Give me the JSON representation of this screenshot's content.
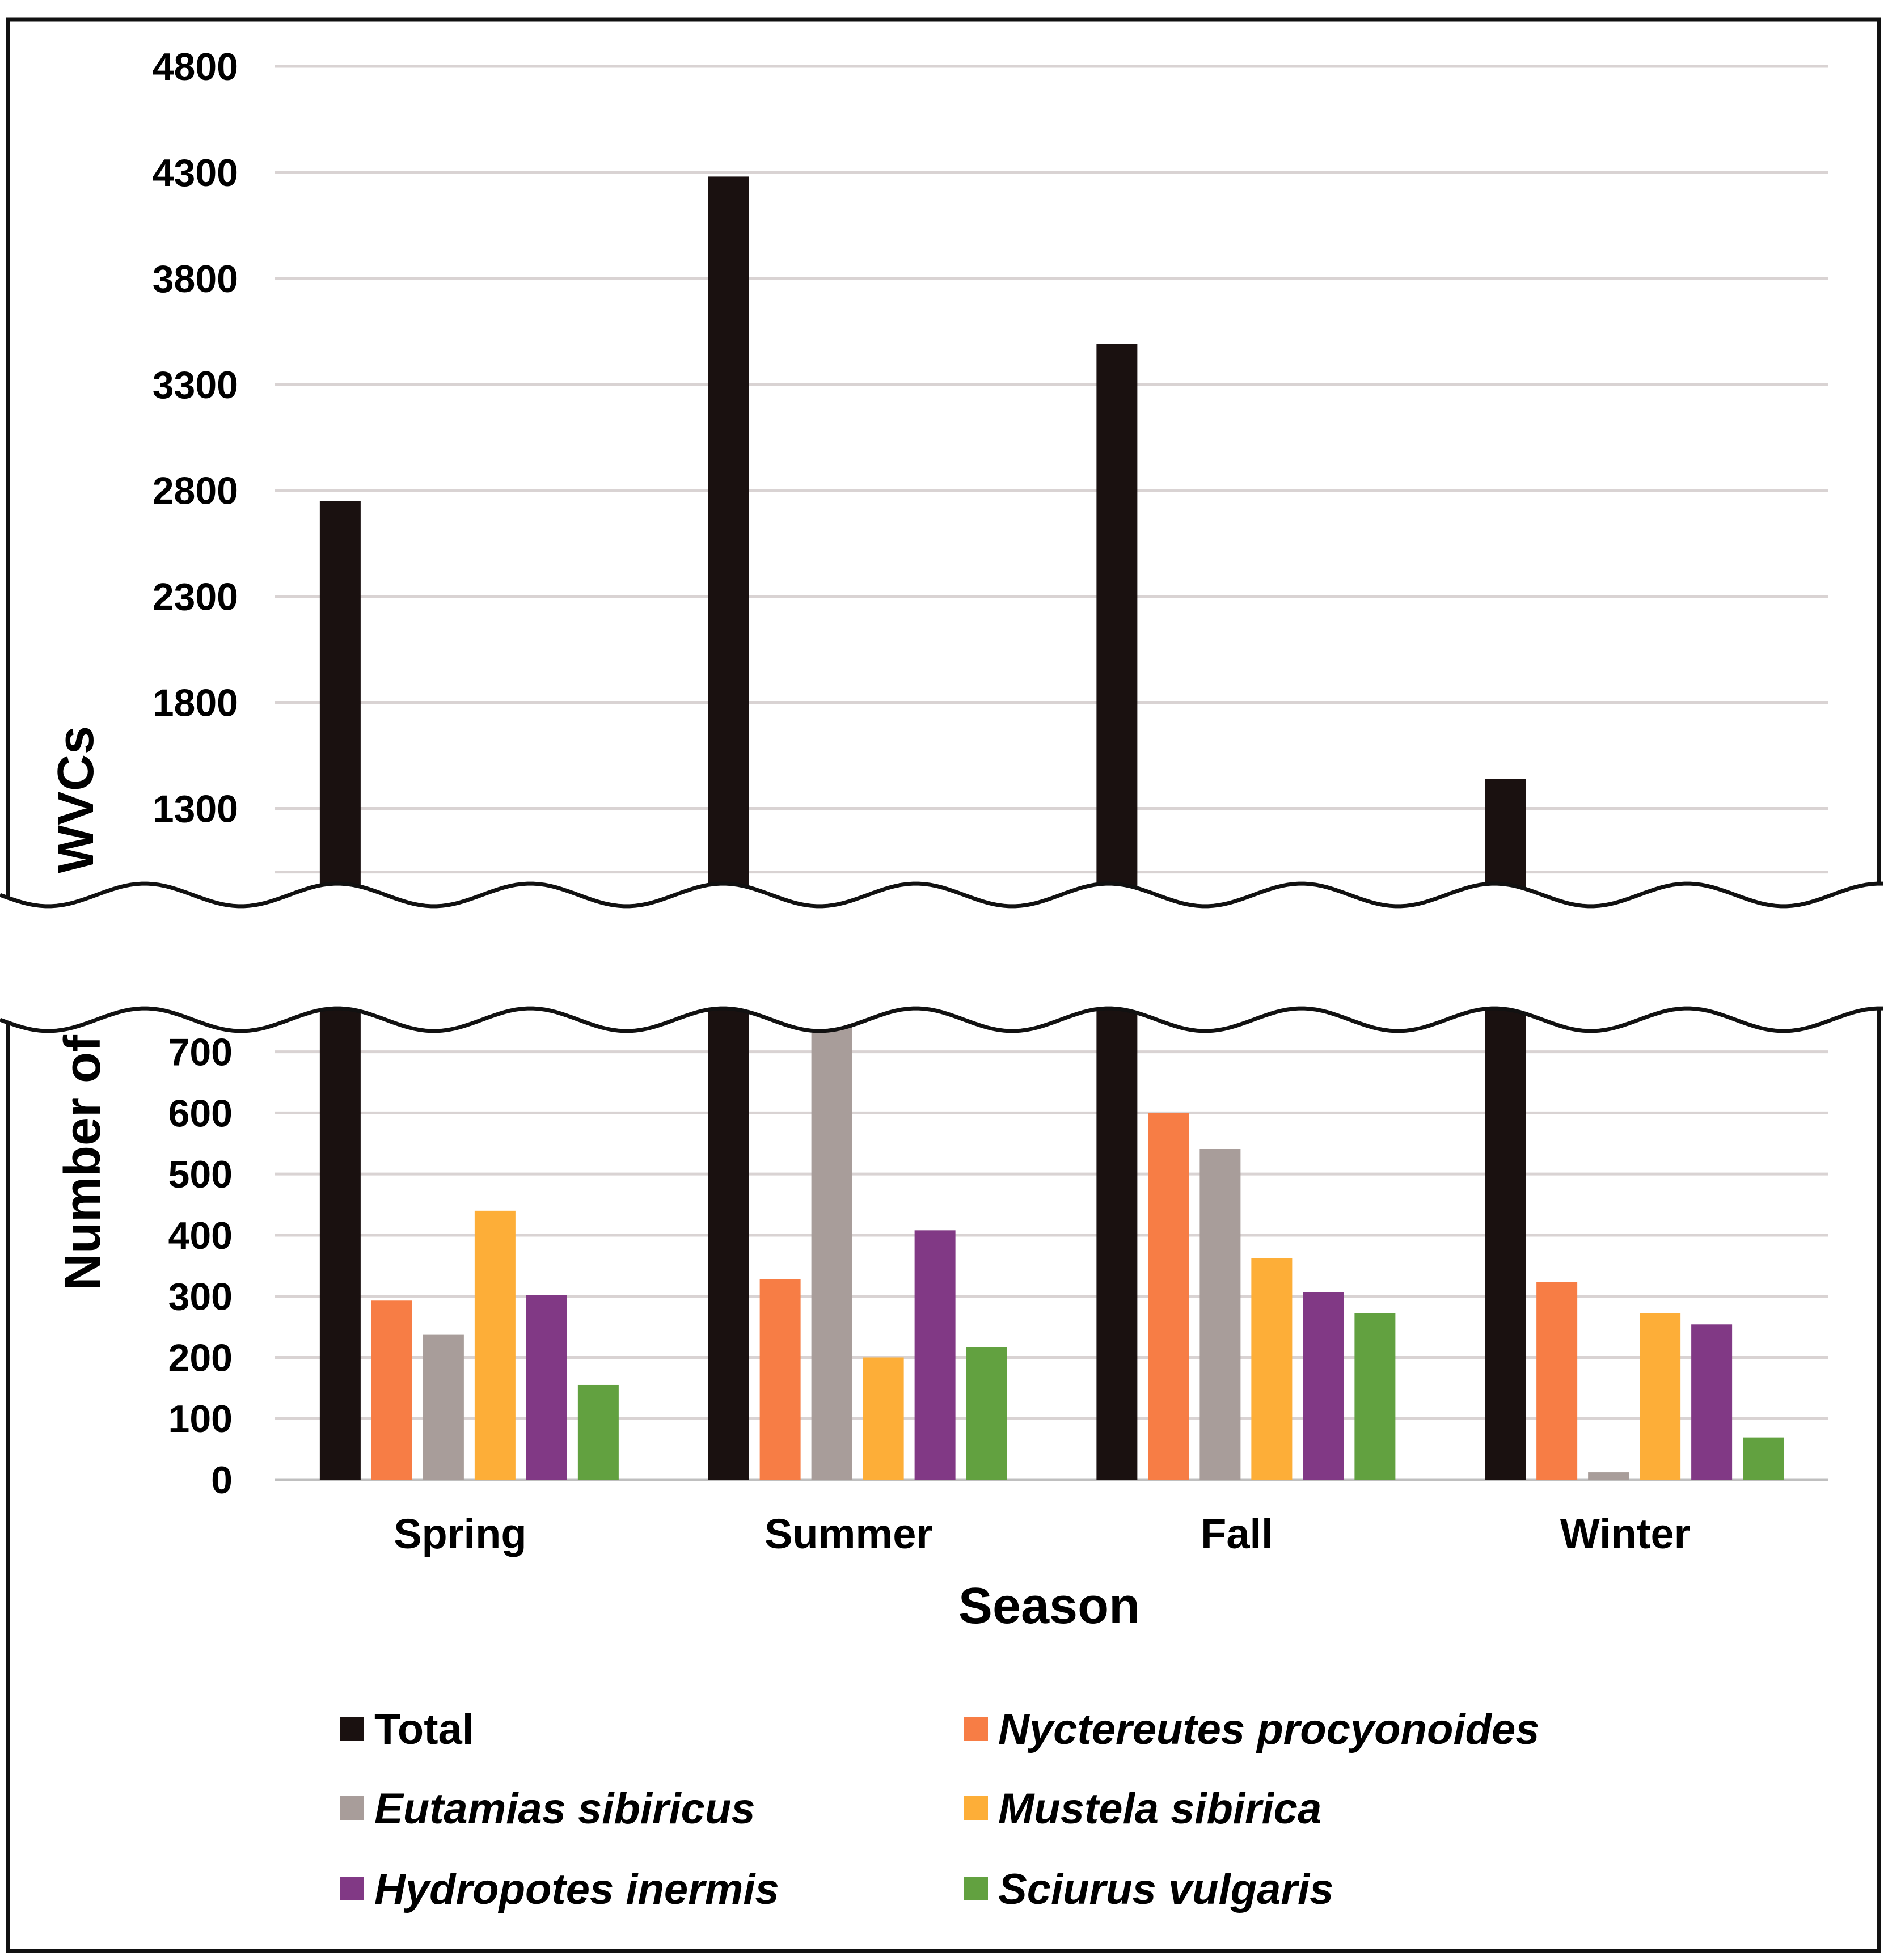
{
  "chart_data": {
    "type": "bar",
    "title": "",
    "xlabel": "Season",
    "ylabel": "Number of WVCs",
    "categories": [
      "Spring",
      "Summer",
      "Fall",
      "Winter"
    ],
    "series": [
      {
        "name": "Total",
        "italic": false,
        "color": "#1a1110",
        "values": [
          2750,
          4280,
          3490,
          1440
        ]
      },
      {
        "name": "Nyctereutes procyonoides",
        "italic": true,
        "color": "#f77d45",
        "values": [
          293,
          328,
          600,
          323
        ]
      },
      {
        "name": "Eutamias sibiricus",
        "italic": true,
        "color": "#a89d9a",
        "values": [
          237,
          751,
          541,
          12
        ]
      },
      {
        "name": "Mustela sibirica",
        "italic": true,
        "color": "#fdae38",
        "values": [
          440,
          200,
          362,
          272
        ]
      },
      {
        "name": "Hydropotes inermis",
        "italic": true,
        "color": "#813985",
        "values": [
          302,
          408,
          307,
          254
        ]
      },
      {
        "name": "Sciurus vulgaris",
        "italic": true,
        "color": "#62a140",
        "values": [
          155,
          217,
          272,
          69
        ]
      }
    ],
    "axis_break": {
      "lower_range": [
        0,
        760
      ],
      "upper_range": [
        900,
        4800
      ],
      "lower_ticks": [
        0,
        100,
        200,
        300,
        400,
        500,
        600,
        700
      ],
      "upper_ticks": [
        1300,
        1800,
        2300,
        2800,
        3300,
        3800,
        4300,
        4800
      ]
    },
    "grid": true,
    "legend_position": "bottom"
  }
}
